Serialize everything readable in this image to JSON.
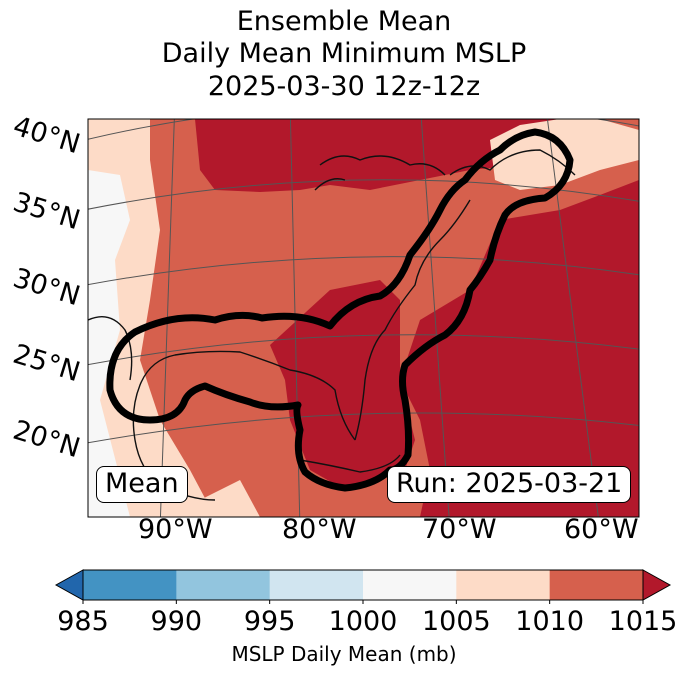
{
  "title_lines": [
    "Ensemble Mean",
    "Daily Mean Minimum MSLP",
    "2025-03-30 12z-12z"
  ],
  "latitude_labels": [
    "40°N",
    "35°N",
    "30°N",
    "25°N",
    "20°N"
  ],
  "longitude_labels": [
    "90°W",
    "80°W",
    "70°W",
    "60°W"
  ],
  "boxes": {
    "left": "Mean",
    "right": "Run: 2025-03-21"
  },
  "colorbar": {
    "ticks": [
      "985",
      "990",
      "995",
      "1000",
      "1005",
      "1010",
      "1015"
    ],
    "label": "MSLP Daily Mean (mb)",
    "colors": [
      "#2166ac",
      "#4393c3",
      "#92c5de",
      "#d1e5f0",
      "#f7f7f7",
      "#fddbc7",
      "#d6604d",
      "#b2182b"
    ],
    "extend": "both"
  }
}
